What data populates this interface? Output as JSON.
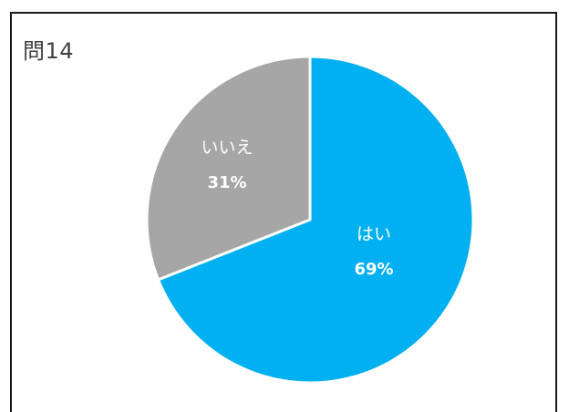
{
  "chart_data": {
    "type": "pie",
    "title": "問14",
    "slices": [
      {
        "label": "はい",
        "value": 69,
        "value_label": "69%",
        "color": "#00B0F0"
      },
      {
        "label": "いいえ",
        "value": 31,
        "value_label": "31%",
        "color": "#A6A6A6"
      }
    ],
    "start": "12 o'clock",
    "direction": "clockwise"
  }
}
